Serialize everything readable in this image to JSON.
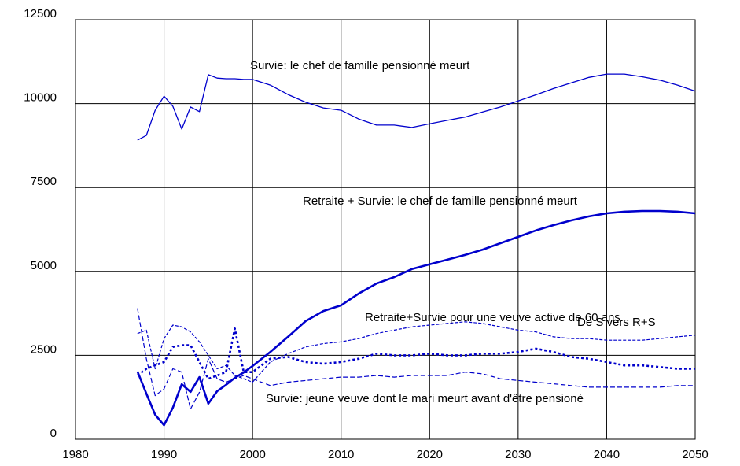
{
  "chart_data": {
    "type": "line",
    "x": [
      1987,
      1988,
      1989,
      1990,
      1991,
      1992,
      1993,
      1994,
      1995,
      1996,
      1997,
      1998,
      1999,
      2000,
      2002,
      2004,
      2006,
      2008,
      2010,
      2012,
      2014,
      2016,
      2018,
      2020,
      2022,
      2024,
      2026,
      2028,
      2030,
      2032,
      2034,
      2036,
      2038,
      2040,
      2042,
      2044,
      2046,
      2048,
      2050
    ],
    "series": [
      {
        "name": "Survie: le chef de famille pensionné meurt",
        "color": "#0000cc",
        "values": [
          8910,
          9050,
          9800,
          10220,
          9920,
          9240,
          9900,
          9760,
          10860,
          10760,
          10740,
          10740,
          10720,
          10720,
          10550,
          10270,
          10040,
          9870,
          9800,
          9540,
          9360,
          9360,
          9290,
          9400,
          9500,
          9600,
          9750,
          9900,
          10080,
          10260,
          10450,
          10620,
          10780,
          10880,
          10880,
          10800,
          10700,
          10550,
          10370
        ]
      },
      {
        "name": "Retraite + Survie: le chef de famille pensionné meurt",
        "color": "#0000cc",
        "values": [
          2020,
          1360,
          730,
          420,
          940,
          1640,
          1410,
          1850,
          1060,
          1430,
          1620,
          1830,
          1990,
          2180,
          2600,
          3050,
          3520,
          3820,
          3990,
          4340,
          4640,
          4830,
          5070,
          5210,
          5350,
          5490,
          5650,
          5840,
          6030,
          6220,
          6380,
          6520,
          6640,
          6730,
          6780,
          6800,
          6800,
          6780,
          6730
        ]
      },
      {
        "name": "Retraite+Survie pour une veuve active de 60 ans.",
        "color": "#0000cc",
        "values": [
          3150,
          3250,
          2100,
          3000,
          3400,
          3350,
          3200,
          2900,
          2500,
          2100,
          2200,
          1900,
          1800,
          1700,
          2300,
          2550,
          2750,
          2850,
          2900,
          3000,
          3150,
          3250,
          3350,
          3400,
          3450,
          3500,
          3450,
          3350,
          3250,
          3200,
          3050,
          3000,
          3000,
          2950,
          2950,
          2950,
          3000,
          3050,
          3100
        ]
      },
      {
        "name": "De S vers R+S",
        "color": "#0000cc",
        "values": [
          1900,
          2100,
          2200,
          2300,
          2750,
          2800,
          2800,
          2300,
          1800,
          1900,
          2000,
          3300,
          2000,
          2000,
          2400,
          2450,
          2300,
          2250,
          2300,
          2400,
          2550,
          2500,
          2500,
          2550,
          2500,
          2500,
          2550,
          2550,
          2600,
          2700,
          2600,
          2450,
          2400,
          2300,
          2200,
          2200,
          2150,
          2100,
          2100
        ]
      },
      {
        "name": "Survie: jeune veuve dont le mari meurt avant d'être pensioné",
        "color": "#0000cc",
        "values": [
          3900,
          2400,
          1300,
          1500,
          2100,
          2000,
          900,
          1400,
          2400,
          1800,
          1700,
          1800,
          1900,
          1800,
          1600,
          1700,
          1750,
          1800,
          1850,
          1850,
          1900,
          1850,
          1900,
          1900,
          1900,
          2000,
          1950,
          1800,
          1750,
          1700,
          1650,
          1600,
          1550,
          1550,
          1550,
          1550,
          1550,
          1600,
          1600
        ]
      }
    ],
    "xlim": [
      1980,
      2050
    ],
    "xticks": [
      1980,
      1990,
      2000,
      2010,
      2020,
      2030,
      2040,
      2050
    ],
    "ylim": [
      0,
      12500
    ],
    "yticks": [
      0,
      2500,
      5000,
      7500,
      10000,
      12500
    ],
    "grid": true
  }
}
